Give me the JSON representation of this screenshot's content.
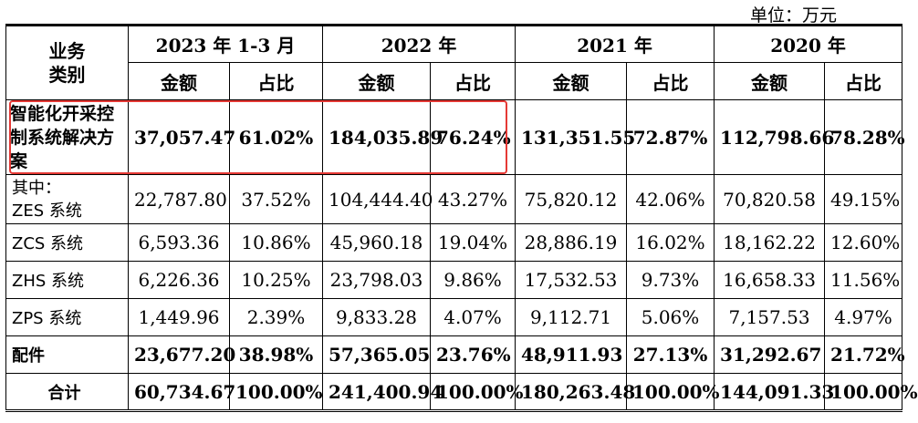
{
  "unit_label": "单位：万元",
  "header": {
    "category_label": "业务\n类别",
    "periods": [
      "2023 年 1-3 月",
      "2022 年",
      "2021 年",
      "2020 年"
    ],
    "amount_label": "金额",
    "ratio_label": "占比"
  },
  "rows": [
    {
      "label": "智能化开采控制系统解决方案",
      "values": [
        "37,057.47",
        "61.02%",
        "184,035.89",
        "76.24%",
        "131,351.55",
        "72.87%",
        "112,798.66",
        "78.28%"
      ]
    },
    {
      "label": "其中：\nZES 系统",
      "values": [
        "22,787.80",
        "37.52%",
        "104,444.40",
        "43.27%",
        "75,820.12",
        "42.06%",
        "70,820.58",
        "49.15%"
      ]
    },
    {
      "label": "ZCS 系统",
      "values": [
        "6,593.36",
        "10.86%",
        "45,960.18",
        "19.04%",
        "28,886.19",
        "16.02%",
        "18,162.22",
        "12.60%"
      ]
    },
    {
      "label": "ZHS 系统",
      "values": [
        "6,226.36",
        "10.25%",
        "23,798.03",
        "9.86%",
        "17,532.53",
        "9.73%",
        "16,658.33",
        "11.56%"
      ]
    },
    {
      "label": "ZPS 系统",
      "values": [
        "1,449.96",
        "2.39%",
        "9,833.28",
        "4.07%",
        "9,112.71",
        "5.06%",
        "7,157.53",
        "4.97%"
      ]
    },
    {
      "label": "配件",
      "values": [
        "23,677.20",
        "38.98%",
        "57,365.05",
        "23.76%",
        "48,911.93",
        "27.13%",
        "31,292.67",
        "21.72%"
      ]
    },
    {
      "label": "合计",
      "values": [
        "60,734.67",
        "100.00%",
        "241,400.94",
        "100.00%",
        "180,263.48",
        "100.00%",
        "144,091.33",
        "100.00%"
      ]
    }
  ]
}
